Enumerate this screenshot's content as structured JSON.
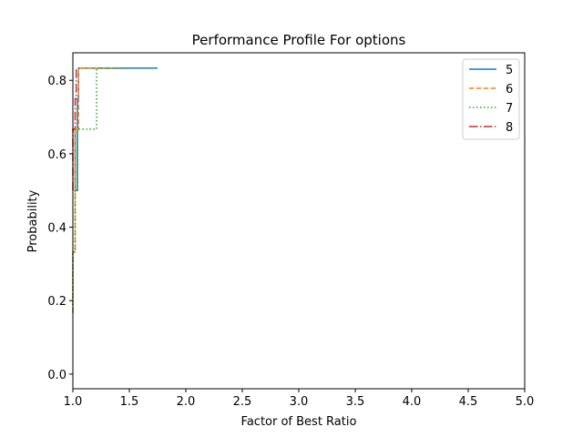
{
  "chart_data": {
    "type": "line",
    "title": "Performance Profile For options",
    "xlabel": "Factor of Best Ratio",
    "ylabel": "Probability",
    "xlim": [
      1.0,
      5.0
    ],
    "ylim": [
      -0.04,
      0.875
    ],
    "x_ticks": [
      "1.0",
      "1.5",
      "2.0",
      "2.5",
      "3.0",
      "3.5",
      "4.0",
      "4.5",
      "5.0"
    ],
    "y_ticks": [
      "0.0",
      "0.2",
      "0.4",
      "0.6",
      "0.8"
    ],
    "grid": false,
    "legend_position": "top-right",
    "step": true,
    "series": [
      {
        "name": "5",
        "color": "#1f77b4",
        "dash": "solid",
        "x": [
          1.02,
          1.02,
          1.04,
          1.04,
          1.05,
          1.05,
          1.75
        ],
        "y": [
          0.667,
          0.5,
          0.5,
          0.75,
          0.75,
          0.833,
          0.833
        ]
      },
      {
        "name": "6",
        "color": "#ff7f0e",
        "dash": "dashed",
        "x": [
          1.0,
          1.0,
          1.02,
          1.02,
          1.05,
          1.05,
          1.4
        ],
        "y": [
          0.167,
          0.333,
          0.333,
          0.667,
          0.667,
          0.833,
          0.833
        ]
      },
      {
        "name": "7",
        "color": "#2ca02c",
        "dash": "dotted",
        "x": [
          1.0,
          1.0,
          1.02,
          1.02,
          1.04,
          1.04,
          1.08,
          1.08,
          1.21,
          1.21,
          1.5
        ],
        "y": [
          0.167,
          0.333,
          0.333,
          0.5,
          0.5,
          0.667,
          0.667,
          0.667,
          0.667,
          0.833,
          0.833
        ]
      },
      {
        "name": "8",
        "color": "#d62728",
        "dash": "dashdot",
        "x": [
          1.0,
          1.0,
          1.02,
          1.02,
          1.03,
          1.03
        ],
        "y": [
          0.5,
          0.667,
          0.667,
          0.75,
          0.75,
          0.833
        ]
      }
    ]
  }
}
